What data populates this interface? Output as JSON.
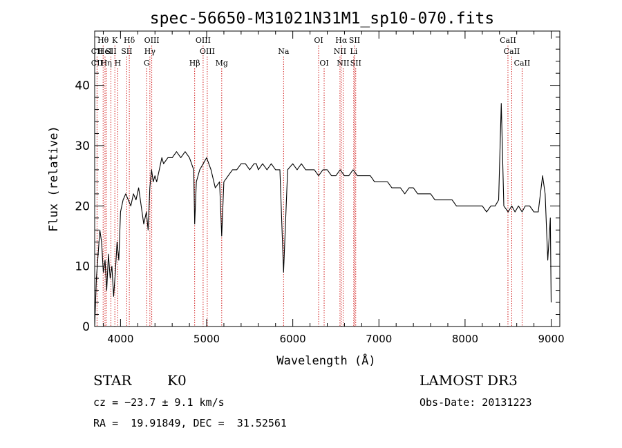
{
  "chart_data": {
    "type": "line",
    "title": "spec-56650-M31021N31M1_sp10-070.fits",
    "xlabel": "Wavelength (Å)",
    "ylabel": "Flux (relative)",
    "xlim": [
      3700,
      9100
    ],
    "ylim": [
      0,
      49
    ],
    "xticks": [
      4000,
      5000,
      6000,
      7000,
      8000,
      9000
    ],
    "yticks": [
      0,
      10,
      20,
      30,
      40
    ],
    "grid": false,
    "line_color": "#000000",
    "marker_color": "#cc0000",
    "spectrum": {
      "name": "",
      "x": [
        3700,
        3720,
        3740,
        3760,
        3780,
        3800,
        3820,
        3840,
        3860,
        3880,
        3900,
        3920,
        3940,
        3960,
        3980,
        4000,
        4030,
        4060,
        4090,
        4120,
        4150,
        4180,
        4210,
        4240,
        4270,
        4300,
        4320,
        4340,
        4360,
        4380,
        4400,
        4420,
        4450,
        4480,
        4500,
        4550,
        4600,
        4650,
        4700,
        4750,
        4800,
        4850,
        4861,
        4880,
        4920,
        4960,
        5000,
        5050,
        5100,
        5150,
        5175,
        5200,
        5250,
        5300,
        5350,
        5400,
        5450,
        5500,
        5550,
        5577,
        5600,
        5650,
        5700,
        5750,
        5800,
        5850,
        5893,
        5940,
        6000,
        6050,
        6100,
        6150,
        6200,
        6250,
        6300,
        6350,
        6400,
        6450,
        6500,
        6550,
        6600,
        6650,
        6700,
        6750,
        6800,
        6850,
        6900,
        6950,
        7000,
        7050,
        7100,
        7150,
        7200,
        7250,
        7300,
        7350,
        7400,
        7450,
        7500,
        7550,
        7600,
        7650,
        7700,
        7750,
        7800,
        7850,
        7900,
        7950,
        8000,
        8050,
        8100,
        8150,
        8200,
        8250,
        8300,
        8350,
        8390,
        8420,
        8450,
        8500,
        8542,
        8580,
        8620,
        8662,
        8700,
        8750,
        8800,
        8850,
        8900,
        8930,
        8960,
        8990,
        9000
      ],
      "y": [
        0,
        8,
        12,
        16,
        14,
        9,
        11,
        6,
        12,
        8,
        10,
        5,
        9,
        14,
        11,
        19,
        21,
        22,
        21,
        20,
        22,
        21,
        23,
        20,
        17,
        19,
        16,
        23,
        26,
        24,
        25,
        24,
        26,
        28,
        27,
        28,
        28,
        29,
        28,
        29,
        28,
        26,
        17,
        24,
        26,
        27,
        28,
        26,
        23,
        24,
        15,
        24,
        25,
        26,
        26,
        27,
        27,
        26,
        27,
        27,
        26,
        27,
        26,
        27,
        26,
        26,
        9,
        26,
        27,
        26,
        27,
        26,
        26,
        26,
        25,
        26,
        26,
        25,
        25,
        26,
        25,
        25,
        26,
        25,
        25,
        25,
        25,
        24,
        24,
        24,
        24,
        23,
        23,
        23,
        22,
        23,
        23,
        22,
        22,
        22,
        22,
        21,
        21,
        21,
        21,
        21,
        20,
        20,
        20,
        20,
        20,
        20,
        20,
        19,
        20,
        20,
        21,
        37,
        20,
        19,
        20,
        19,
        20,
        19,
        20,
        20,
        19,
        19,
        25,
        22,
        11,
        18,
        4
      ]
    },
    "lines": [
      {
        "label": "CII",
        "x": 3727,
        "row": 2
      },
      {
        "label": "CII",
        "x": 3727,
        "row": 3
      },
      {
        "label": "Hθ",
        "x": 3798,
        "row": 1
      },
      {
        "label": "HeI",
        "x": 3820,
        "row": 2
      },
      {
        "label": "Hη",
        "x": 3835,
        "row": 3
      },
      {
        "label": "K",
        "x": 3934,
        "row": 1
      },
      {
        "label": "SII",
        "x": 3889,
        "row": 2
      },
      {
        "label": "H",
        "x": 3968,
        "row": 3
      },
      {
        "label": "Hδ",
        "x": 4102,
        "row": 1
      },
      {
        "label": "SII",
        "x": 4072,
        "row": 2
      },
      {
        "label": "OIII",
        "x": 4363,
        "row": 1
      },
      {
        "label": "Hγ",
        "x": 4341,
        "row": 2
      },
      {
        "label": "G",
        "x": 4304,
        "row": 3
      },
      {
        "label": "OIII",
        "x": 4959,
        "row": 1
      },
      {
        "label": "OIII",
        "x": 5007,
        "row": 2
      },
      {
        "label": "Hβ",
        "x": 4861,
        "row": 3
      },
      {
        "label": "Mg",
        "x": 5175,
        "row": 3
      },
      {
        "label": "Na",
        "x": 5893,
        "row": 2
      },
      {
        "label": "OI",
        "x": 6300,
        "row": 1
      },
      {
        "label": "OI",
        "x": 6364,
        "row": 3
      },
      {
        "label": "Hα",
        "x": 6563,
        "row": 1
      },
      {
        "label": "NII",
        "x": 6548,
        "row": 2
      },
      {
        "label": "NII",
        "x": 6584,
        "row": 3
      },
      {
        "label": "SII",
        "x": 6717,
        "row": 1
      },
      {
        "label": "Li",
        "x": 6708,
        "row": 2
      },
      {
        "label": "SII",
        "x": 6731,
        "row": 3
      },
      {
        "label": "CaII",
        "x": 8498,
        "row": 1
      },
      {
        "label": "CaII",
        "x": 8542,
        "row": 2
      },
      {
        "label": "CaII",
        "x": 8662,
        "row": 3
      }
    ]
  },
  "info": {
    "class": "STAR",
    "subclass": "K0",
    "survey": "LAMOST DR3",
    "cz": "cz = −23.7 ± 9.1 km/s",
    "obs_date": "Obs-Date: 20131223",
    "coords": "RA =  19.91849, DEC =  31.52561"
  }
}
